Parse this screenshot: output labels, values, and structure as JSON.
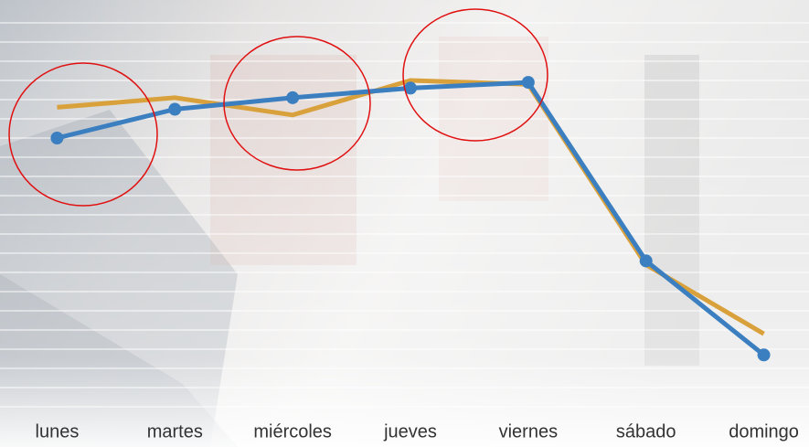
{
  "chart_data": {
    "type": "line",
    "categories": [
      "lunes",
      "martes",
      "miércoles",
      "jueves",
      "viernes",
      "sábado",
      "domingo"
    ],
    "series": [
      {
        "name": null,
        "color": "#d9a13b",
        "values": [
          15.6,
          16.1,
          15.2,
          17.0,
          16.8,
          7.4,
          3.8
        ]
      },
      {
        "name": null,
        "color": "#3b7fc0",
        "values": [
          14.0,
          15.5,
          16.1,
          16.6,
          16.9,
          7.6,
          2.7
        ]
      }
    ],
    "ylim": [
      0,
      20
    ],
    "yticks": [
      0,
      1,
      2,
      3,
      4,
      5,
      6,
      7,
      8,
      9,
      10,
      11,
      12,
      13,
      14,
      15,
      16,
      17,
      18,
      19,
      20
    ],
    "grid": true
  }
}
